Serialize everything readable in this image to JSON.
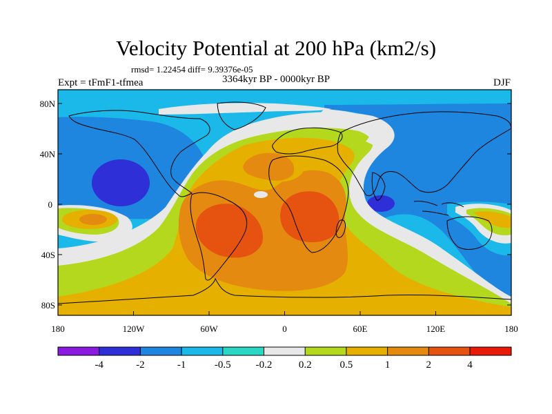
{
  "plot": {
    "title": "Velocity Potential at 200 hPa (km2/s)",
    "stats": "rmsd= 1.22454 diff= 9.39376e-05",
    "experiment": "Expt = tFmF1-tfmea",
    "period": "3364kyr BP - 0000kyr BP",
    "season": "DJF"
  },
  "axes": {
    "y_ticks": [
      "80N",
      "40N",
      "0",
      "40S",
      "80S"
    ],
    "x_ticks": [
      "180",
      "120W",
      "60W",
      "0",
      "60E",
      "120E",
      "180"
    ]
  },
  "colorbar": {
    "labels": [
      "-4",
      "-2",
      "-1",
      "-0.5",
      "-0.2",
      "0.2",
      "0.5",
      "1",
      "2",
      "4"
    ],
    "colors": [
      "#8a1ae0",
      "#2f2fd8",
      "#1f86e0",
      "#1ab9ea",
      "#2ad6c4",
      "#e8e8e8",
      "#b4d81e",
      "#e6b000",
      "#e58a10",
      "#e65210",
      "#e81a0a"
    ]
  }
}
